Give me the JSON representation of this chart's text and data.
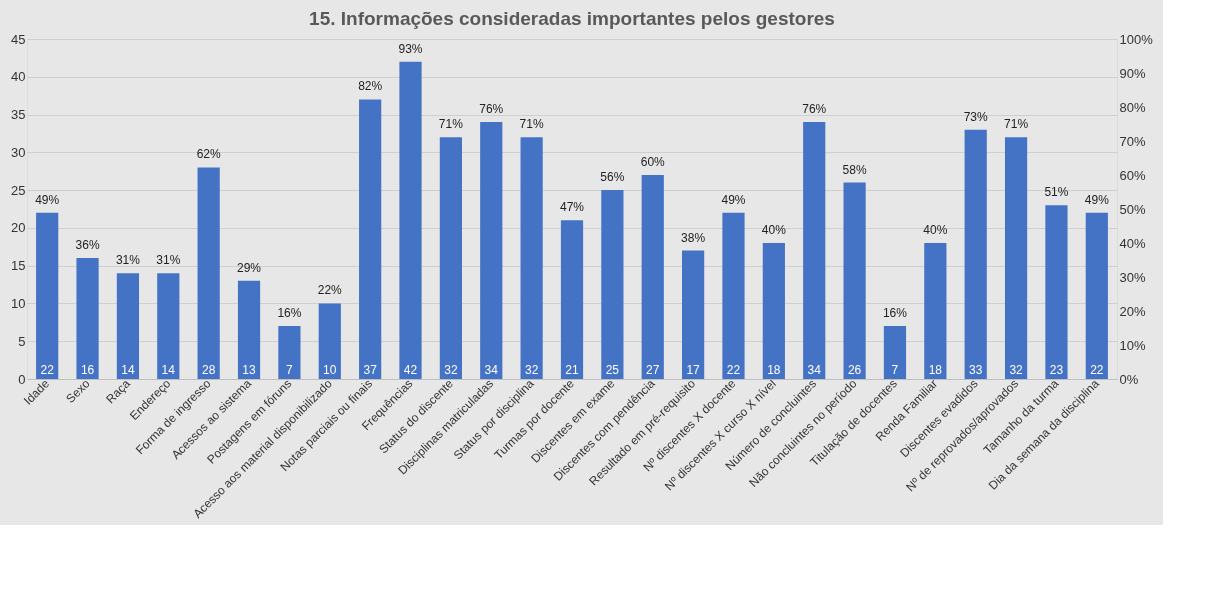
{
  "chart_data": {
    "type": "bar",
    "title": "15. Informações consideradas importantes pelos gestores",
    "categories": [
      "Idade",
      "Sexo",
      "Raça",
      "Endereço",
      "Forma de ingresso",
      "Acessos ao sistema",
      "Postagens em fóruns",
      "Acesso aos material disponibilizado",
      "Notas parciais ou finais",
      "Frequências",
      "Status do discente",
      "Disciplinas matriculadas",
      "Status por disciplina",
      "Turmas por docente",
      "Discentes em exame",
      "Discentes com pendência",
      "Resultado em pré-requisito",
      "Nº discentes X docente",
      "Nº discentes X curso X nível",
      "Número de concluintes",
      "Não concluintes no período",
      "Titulação de docentes",
      "Renda Familiar",
      "Discentes evadidos",
      "Nº de reprovados/aprovados",
      "Tamanho da turma",
      "Dia da semana da disciplina"
    ],
    "values": [
      22,
      16,
      14,
      14,
      28,
      13,
      7,
      10,
      37,
      42,
      32,
      34,
      32,
      21,
      25,
      27,
      17,
      22,
      18,
      34,
      26,
      7,
      18,
      33,
      32,
      23,
      22
    ],
    "data_labels": true,
    "annotations": [
      {
        "text": "49%",
        "x": "Idade",
        "y": 22
      },
      {
        "text": "36%",
        "x": "Sexo",
        "y": 16
      },
      {
        "text": "31%",
        "x": "Raça",
        "y": 14
      },
      {
        "text": "31%",
        "x": "Endereço",
        "y": 14
      },
      {
        "text": "62%",
        "x": "Forma de ingresso",
        "y": 28
      },
      {
        "text": "29%",
        "x": "Acessos ao sistema",
        "y": 13
      },
      {
        "text": "16%",
        "x": "Postagens em fóruns",
        "y": 7
      },
      {
        "text": "22%",
        "x": "Acesso aos material disponibilizado",
        "y": 10
      },
      {
        "text": "82%",
        "x": "Notas parciais ou finais",
        "y": 37
      },
      {
        "text": "93%",
        "x": "Frequências",
        "y": 42
      },
      {
        "text": "71%",
        "x": "Status do discente",
        "y": 32
      },
      {
        "text": "76%",
        "x": "Disciplinas matriculadas",
        "y": 34
      },
      {
        "text": "71%",
        "x": "Status por disciplina",
        "y": 32
      },
      {
        "text": "47%",
        "x": "Turmas por docente",
        "y": 21
      },
      {
        "text": "56%",
        "x": "Discentes em exame",
        "y": 25
      },
      {
        "text": "60%",
        "x": "Discentes com pendência",
        "y": 27
      },
      {
        "text": "38%",
        "x": "Resultado em pré-requisito",
        "y": 17
      },
      {
        "text": "49%",
        "x": "Nº discentes X docente",
        "y": 22
      },
      {
        "text": "40%",
        "x": "Nº discentes X curso X nível",
        "y": 18
      },
      {
        "text": "76%",
        "x": "Número de concluintes",
        "y": 34
      },
      {
        "text": "58%",
        "x": "Não concluintes no período",
        "y": 26
      },
      {
        "text": "16%",
        "x": "Titulação de docentes",
        "y": 7
      },
      {
        "text": "40%",
        "x": "Renda Familiar",
        "y": 18
      },
      {
        "text": "73%",
        "x": "Discentes evadidos",
        "y": 33
      },
      {
        "text": "71%",
        "x": "Nº de reprovados/aprovados",
        "y": 32
      },
      {
        "text": "51%",
        "x": "Tamanho da turma",
        "y": 23
      },
      {
        "text": "49%",
        "x": "Dia da semana da disciplina",
        "y": 22
      }
    ],
    "color": "#4472c4",
    "ylim": [
      0,
      45
    ],
    "yticks": [
      0,
      5,
      10,
      15,
      20,
      25,
      30,
      35,
      40,
      45
    ],
    "y2lim": [
      0,
      100
    ],
    "y2ticks": [
      {
        "value": 0,
        "label": "0%"
      },
      {
        "value": 10,
        "label": "10%"
      },
      {
        "value": 20,
        "label": "20%"
      },
      {
        "value": 30,
        "label": "30%"
      },
      {
        "value": 40,
        "label": "40%"
      },
      {
        "value": 50,
        "label": "50%"
      },
      {
        "value": 60,
        "label": "60%"
      },
      {
        "value": 70,
        "label": "70%"
      },
      {
        "value": 80,
        "label": "80%"
      },
      {
        "value": 90,
        "label": "90%"
      },
      {
        "value": 100,
        "label": "100%"
      }
    ],
    "grid": "y"
  }
}
